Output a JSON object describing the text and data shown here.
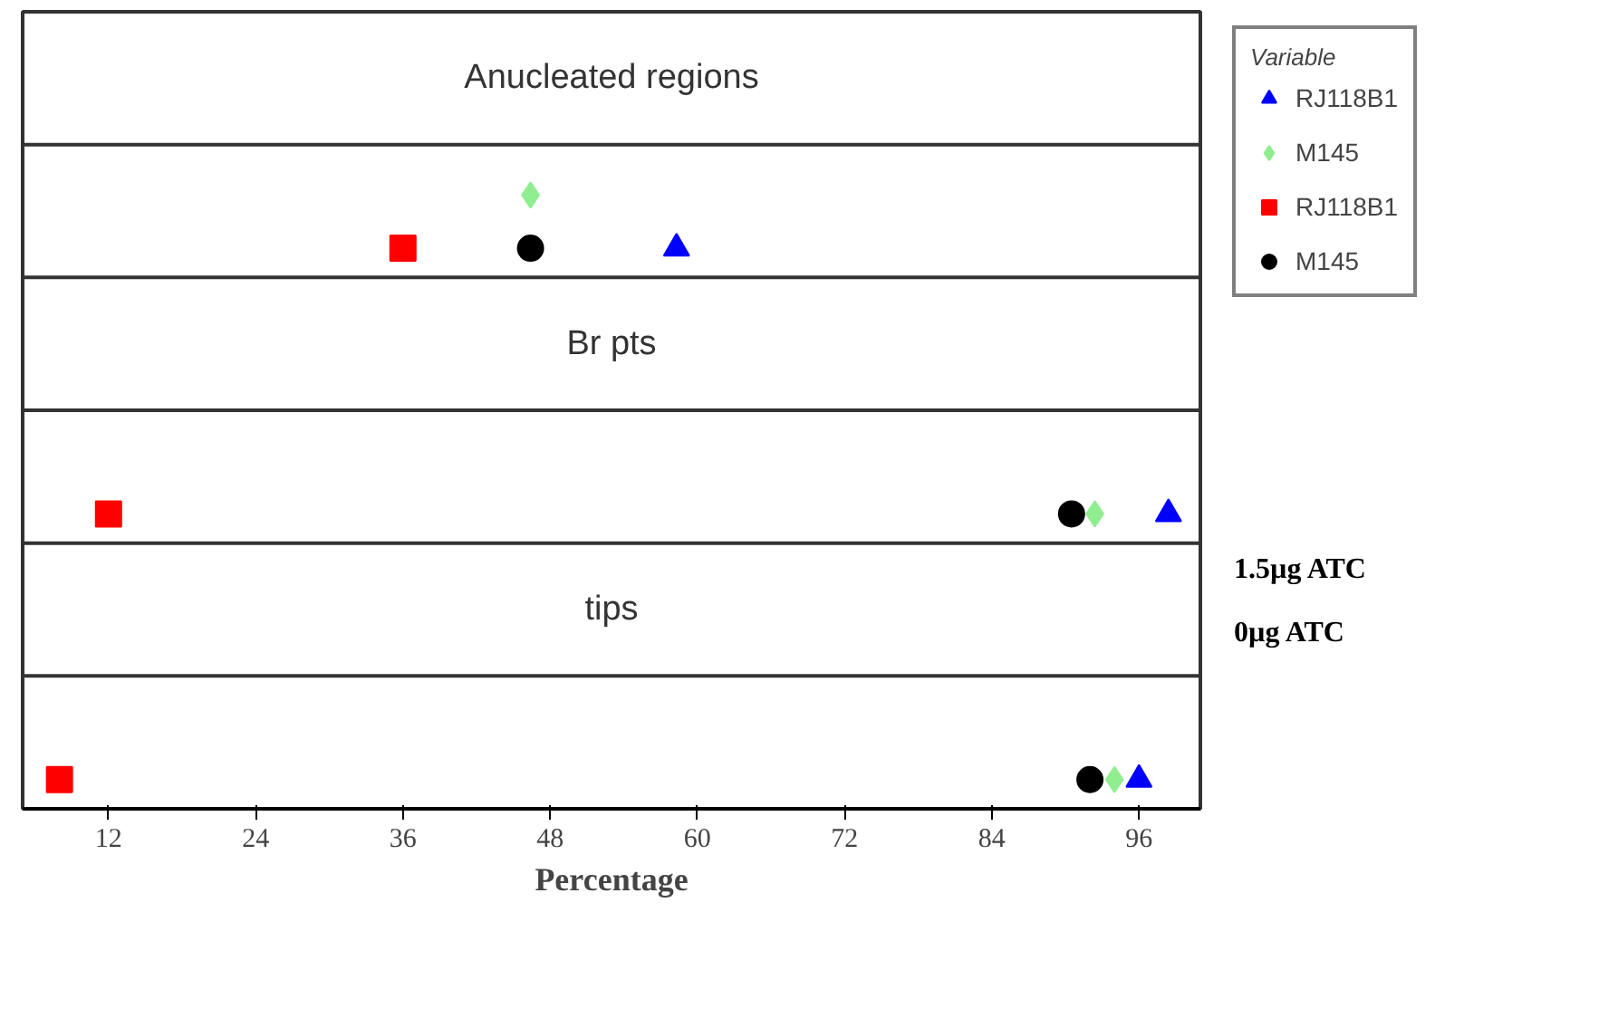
{
  "chart_data": {
    "type": "scatter",
    "orientation": "horizontal",
    "categories": [
      "Anucleated regions",
      "Br pts",
      "tips"
    ],
    "xlabel": "Percentage",
    "legend_title": "Variable",
    "legend": "right",
    "grid": false,
    "tick_labels": "x",
    "xlim": [
      5,
      101
    ],
    "xticks": [
      12,
      24,
      36,
      48,
      60,
      72,
      84,
      96
    ],
    "series": [
      {
        "name": "RJ118B1",
        "color": "#0000ff",
        "marker": "triangle",
        "values": [
          58.3,
          98.4,
          96
        ]
      },
      {
        "name": "M145",
        "color": "#90ee90",
        "marker": "diamond",
        "values": [
          46.4,
          92.4,
          94
        ]
      },
      {
        "name": "RJ118B1",
        "color": "#ff0000",
        "marker": "square",
        "values": [
          36,
          12,
          8
        ]
      },
      {
        "name": "M145",
        "color": "#000000",
        "marker": "circle",
        "values": [
          46.4,
          90.5,
          92
        ]
      }
    ],
    "annotations": [
      "1.5µg ATC",
      "0µg ATC"
    ]
  }
}
